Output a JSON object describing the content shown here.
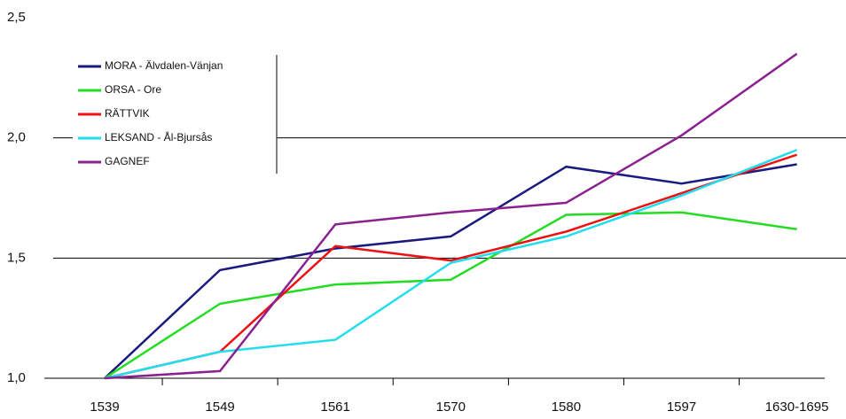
{
  "chart_data": {
    "type": "line",
    "categories": [
      "1539",
      "1549",
      "1561",
      "1570",
      "1580",
      "1597",
      "1630-1695"
    ],
    "series": [
      {
        "name": "MORA - Älvdalen-Vänjan",
        "color": "#1a1a80",
        "values": [
          1.0,
          1.45,
          1.54,
          1.59,
          1.88,
          1.81,
          1.89
        ]
      },
      {
        "name": "ORSA - Ore",
        "color": "#22dd22",
        "values": [
          1.0,
          1.31,
          1.39,
          1.41,
          1.68,
          1.69,
          1.62
        ]
      },
      {
        "name": "RÄTTVIK",
        "color": "#ee1111",
        "values": [
          1.0,
          1.11,
          1.55,
          1.49,
          1.61,
          1.77,
          1.93
        ]
      },
      {
        "name": "LEKSAND - Ål-Bjursås",
        "color": "#22ddee",
        "values": [
          1.0,
          1.11,
          1.16,
          1.48,
          1.59,
          1.76,
          1.95
        ]
      },
      {
        "name": "GAGNEF",
        "color": "#8b2090",
        "values": [
          1.0,
          1.03,
          1.64,
          1.69,
          1.73,
          2.01,
          2.35
        ]
      }
    ],
    "ylim": [
      1.0,
      2.5
    ],
    "yticks": [
      {
        "value": 1.0,
        "label": "1,0"
      },
      {
        "value": 1.5,
        "label": "1,5"
      },
      {
        "value": 2.0,
        "label": "2,0"
      },
      {
        "value": 2.5,
        "label": "2,5"
      }
    ],
    "grid": true
  }
}
